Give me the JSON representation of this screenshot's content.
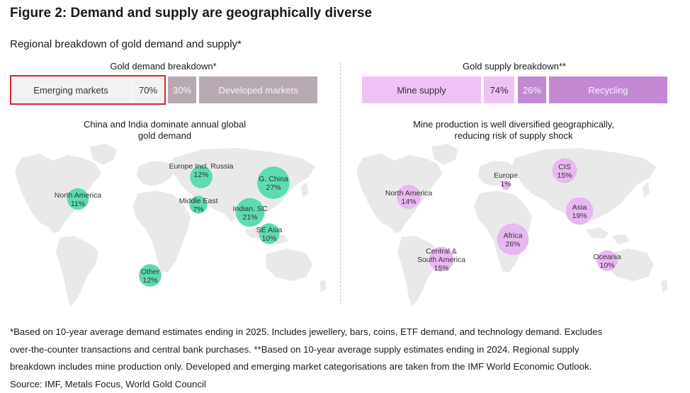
{
  "figure": {
    "title": "Figure 2: Demand and supply are geographically diverse",
    "subtitle": "Regional breakdown of gold demand and supply*"
  },
  "colors": {
    "demand_bubble": "#5ddbb2",
    "supply_bubble": "#e8b8f0",
    "map_land": "#e9e9e9",
    "emerging_bg": "#f2f2f2",
    "developed_bg": "#b7a9b1",
    "mine_bg": "#eec2f5",
    "recycling_bg": "#c38ad3",
    "highlight_border": "#d9262e"
  },
  "demand": {
    "header": "Gold demand breakdown*",
    "emerging_label": "Emerging markets",
    "emerging_pct": "70%",
    "developed_pct": "30%",
    "developed_label": "Developed markets",
    "caption_line1": "China and India dominate annual global",
    "caption_line2": "gold demand"
  },
  "supply": {
    "header": "Gold supply breakdown**",
    "mine_label": "Mine supply",
    "mine_pct": "74%",
    "recycling_pct": "26%",
    "recycling_label": "Recycling",
    "caption_line1": "Mine production is well diversified geographically,",
    "caption_line2": "reducing risk of supply shock"
  },
  "chart_data": [
    {
      "type": "bubble-map",
      "title": "Gold demand breakdown*",
      "caption": "China and India dominate annual global gold demand",
      "series": [
        {
          "name": "North America",
          "lines": [
            "North America"
          ],
          "value": 11,
          "value_label": "11%"
        },
        {
          "name": "Europe Incl. Russia",
          "lines": [
            "Europe Incl. Russia"
          ],
          "value": 12,
          "value_label": "12%"
        },
        {
          "name": "Middle East",
          "lines": [
            "Middle East"
          ],
          "value": 7,
          "value_label": "7%"
        },
        {
          "name": "G. China",
          "lines": [
            "G. China"
          ],
          "value": 27,
          "value_label": "27%"
        },
        {
          "name": "Indian. SC",
          "lines": [
            "Indian. SC"
          ],
          "value": 21,
          "value_label": "21%"
        },
        {
          "name": "SE Asia",
          "lines": [
            "SE Asia"
          ],
          "value": 10,
          "value_label": "10%"
        },
        {
          "name": "Other",
          "lines": [
            "Other"
          ],
          "value": 12,
          "value_label": "12%"
        }
      ],
      "split": [
        {
          "name": "Emerging markets",
          "value": 70
        },
        {
          "name": "Developed markets",
          "value": 30
        }
      ]
    },
    {
      "type": "bubble-map",
      "title": "Gold supply breakdown**",
      "caption": "Mine production is well diversified geographically, reducing risk of supply shock",
      "series": [
        {
          "name": "North America",
          "lines": [
            "North America"
          ],
          "value": 14,
          "value_label": "14%"
        },
        {
          "name": "Europe",
          "lines": [
            "Europe"
          ],
          "value": 1,
          "value_label": "1%"
        },
        {
          "name": "CIS",
          "lines": [
            "CIS"
          ],
          "value": 15,
          "value_label": "15%"
        },
        {
          "name": "Asia",
          "lines": [
            "Asia"
          ],
          "value": 19,
          "value_label": "19%"
        },
        {
          "name": "Africa",
          "lines": [
            "Africa"
          ],
          "value": 26,
          "value_label": "26%"
        },
        {
          "name": "Central & South America",
          "lines": [
            "Central &",
            "South America"
          ],
          "value": 15,
          "value_label": "15%"
        },
        {
          "name": "Oceania",
          "lines": [
            "Oceania"
          ],
          "value": 10,
          "value_label": "10%"
        }
      ],
      "split": [
        {
          "name": "Mine supply",
          "value": 74
        },
        {
          "name": "Recycling",
          "value": 26
        }
      ]
    }
  ],
  "footnote": {
    "line1": "*Based on 10-year average demand estimates ending in 2025. Includes jewellery, bars, coins, ETF demand, and technology demand. Excludes",
    "line2": "over-the-counter transactions and central bank purchases. **Based on 10-year average supply estimates ending in 2024. Regional supply",
    "line3": "breakdown includes mine production only. Developed and emerging market categorisations are taken from the IMF World Economic Outlook.",
    "source": "Source: IMF, Metals Focus, World Gold Council"
  }
}
